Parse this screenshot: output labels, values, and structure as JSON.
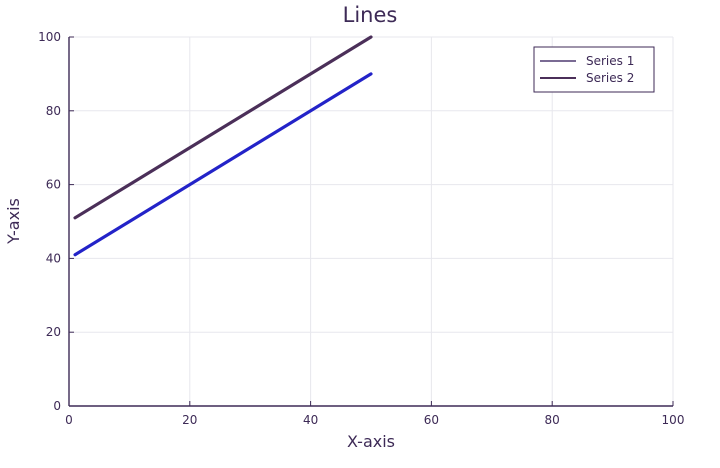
{
  "chart_data": {
    "type": "line",
    "title": "Lines",
    "xlabel": "X-axis",
    "ylabel": "Y-axis",
    "xlim": [
      0,
      100
    ],
    "ylim": [
      0,
      100
    ],
    "xticks": [
      0,
      20,
      40,
      60,
      80,
      100
    ],
    "yticks": [
      0,
      20,
      40,
      60,
      80,
      100
    ],
    "grid": true,
    "legend": {
      "position": "top-right"
    },
    "series": [
      {
        "name": "Series 1",
        "color": "#2323c8",
        "x": [
          1,
          50
        ],
        "y": [
          41,
          90
        ]
      },
      {
        "name": "Series 2",
        "color": "#4b2f59",
        "x": [
          1,
          50
        ],
        "y": [
          51,
          100
        ]
      }
    ]
  }
}
